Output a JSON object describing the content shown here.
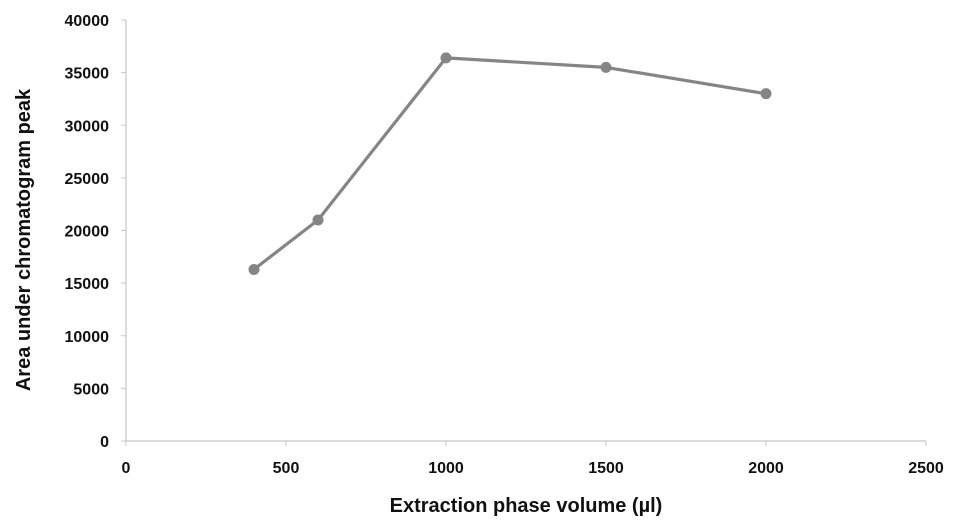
{
  "chart_data": {
    "type": "line",
    "title": "",
    "xlabel": "Extraction phase volume (µl)",
    "ylabel": "Area under chromatogram peak",
    "xlim": [
      0,
      2500
    ],
    "ylim": [
      0,
      40000
    ],
    "x_ticks": [
      0,
      500,
      1000,
      1500,
      2000,
      2500
    ],
    "y_ticks": [
      0,
      5000,
      10000,
      15000,
      20000,
      25000,
      30000,
      35000,
      40000
    ],
    "grid": false,
    "series": [
      {
        "name": "Area under chromatogram peak",
        "color": "#858585",
        "x": [
          400,
          600,
          1000,
          1500,
          2000
        ],
        "y": [
          16300,
          21000,
          36400,
          35500,
          33000
        ]
      }
    ]
  }
}
